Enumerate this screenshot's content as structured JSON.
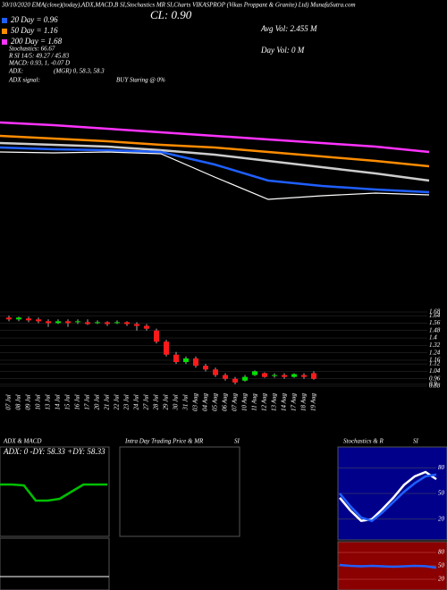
{
  "header": {
    "top_line": "30/10/2020 EMA(close)(today),ADX,MACD,B SI,Stochastics MR SI,Charts VIKASPROP (Vikas Proppant & Granite) Ltd) MunafaSutra.com",
    "close": "CL: 0.90",
    "avg_vol": "Avg Vol: 2.455 M",
    "day_vol": "Day Vol: 0  M",
    "ema_legend": [
      {
        "label": "20 Day = 0.96",
        "color": "#1f5fff"
      },
      {
        "label": "50 Day = 1.16",
        "color": "#ff8c00"
      },
      {
        "label": "200 Day = 1.68",
        "color": "#ff33ff"
      }
    ],
    "stats": [
      "Stochastics: 66.67",
      "R SI 14/5: 49.27 / 45.83",
      "MACD: 0.93, 1, -0.07 D"
    ],
    "adx": [
      "ADX:",
      "(MGR) 0, 58.3, 58.3"
    ],
    "adx_signal": [
      "ADX  signal:",
      "BUY Staring @ 0%"
    ]
  },
  "chart_data": [
    {
      "type": "line",
      "ylim": [
        0.5,
        2.5
      ],
      "series": [
        {
          "name": "200 Day",
          "color": "#ff33ff",
          "values": [
            2.13,
            2.1,
            2.06,
            2.02,
            1.98,
            1.94,
            1.9,
            1.86,
            1.8
          ]
        },
        {
          "name": "50 Day",
          "color": "#ff8c00",
          "values": [
            1.98,
            1.95,
            1.92,
            1.88,
            1.85,
            1.8,
            1.75,
            1.7,
            1.64
          ]
        },
        {
          "name": "100 Day",
          "color": "#cccccc",
          "values": [
            1.9,
            1.88,
            1.86,
            1.82,
            1.77,
            1.7,
            1.63,
            1.56,
            1.48
          ]
        },
        {
          "name": "20 Day",
          "color": "#1f5fff",
          "values": [
            1.85,
            1.83,
            1.82,
            1.8,
            1.66,
            1.48,
            1.42,
            1.38,
            1.35
          ]
        },
        {
          "name": "Price",
          "color": "#ffffff",
          "values": [
            1.8,
            1.79,
            1.8,
            1.78,
            1.52,
            1.27,
            1.31,
            1.34,
            1.32
          ]
        }
      ]
    },
    {
      "type": "candlestick",
      "ylim": [
        0.88,
        1.68
      ],
      "yticks": [
        1.68,
        1.64,
        1.56,
        1.48,
        1.4,
        1.32,
        1.24,
        1.16,
        1.12,
        1.04,
        0.96,
        0.9,
        0.88
      ],
      "up_color": "#00e000",
      "down_color": "#ff1a1a",
      "categories": [
        "07 Jul",
        "08 Jul",
        "09 Jul",
        "10 Jul",
        "13 Jul",
        "14 Jul",
        "15 Jul",
        "16 Jul",
        "17 Jul",
        "20 Jul",
        "21 Jul",
        "22 Jul",
        "23 Jul",
        "24 Jul",
        "27 Jul",
        "28 Jul",
        "29 Jul",
        "30 Jul",
        "31 Jul",
        "03 Aug",
        "04 Aug",
        "05 Aug",
        "06 Aug",
        "07 Aug",
        "10 Aug",
        "11 Aug",
        "12 Aug",
        "13 Aug",
        "14 Aug",
        "17 Aug",
        "18 Aug",
        "19 Aug"
      ],
      "open": [
        1.62,
        1.6,
        1.61,
        1.6,
        1.58,
        1.56,
        1.58,
        1.57,
        1.57,
        1.56,
        1.57,
        1.56,
        1.57,
        1.55,
        1.53,
        1.48,
        1.36,
        1.22,
        1.14,
        1.18,
        1.1,
        1.06,
        1.0,
        0.96,
        0.94,
        1.0,
        1.02,
        0.99,
        1.0,
        0.98,
        1.0,
        1.02
      ],
      "close": [
        1.6,
        1.62,
        1.59,
        1.58,
        1.56,
        1.58,
        1.56,
        1.58,
        1.55,
        1.57,
        1.55,
        1.57,
        1.55,
        1.53,
        1.5,
        1.36,
        1.22,
        1.14,
        1.18,
        1.1,
        1.06,
        1.0,
        0.96,
        0.92,
        0.98,
        1.04,
        0.98,
        1.0,
        0.98,
        1.01,
        0.98,
        0.96
      ],
      "high": [
        1.64,
        1.63,
        1.63,
        1.62,
        1.6,
        1.6,
        1.6,
        1.6,
        1.6,
        1.59,
        1.58,
        1.59,
        1.58,
        1.57,
        1.55,
        1.5,
        1.38,
        1.25,
        1.2,
        1.2,
        1.12,
        1.08,
        1.02,
        0.98,
        1.0,
        1.05,
        1.03,
        1.02,
        1.02,
        1.02,
        1.02,
        1.04
      ],
      "low": [
        1.58,
        1.58,
        1.57,
        1.56,
        1.52,
        1.55,
        1.52,
        1.55,
        1.54,
        1.55,
        1.53,
        1.55,
        1.53,
        1.48,
        1.48,
        1.34,
        1.2,
        1.12,
        1.12,
        1.08,
        1.04,
        0.98,
        0.94,
        0.9,
        0.93,
        0.99,
        0.97,
        0.97,
        0.96,
        0.97,
        0.96,
        0.95
      ]
    },
    {
      "type": "adx",
      "title": "ADX  & MACD",
      "readout": "ADX: 0  -DY: 58.33  +DY: 58.33",
      "ylim": [
        0,
        100
      ],
      "series": [
        {
          "name": "ADX",
          "color": "#00c000",
          "values": [
            58,
            58,
            57,
            40,
            40,
            42,
            50,
            58,
            58,
            58
          ]
        }
      ]
    },
    {
      "type": "blank",
      "title": "Intra Day Trading Price  & MR",
      "title2": "SI"
    },
    {
      "type": "stochastics",
      "title": "Stochastics & R",
      "title2": "SI",
      "ylim": [
        0,
        100
      ],
      "yticks": [
        80,
        50,
        20
      ],
      "series": [
        {
          "name": "%K",
          "color": "#ffffff",
          "values": [
            45,
            30,
            18,
            20,
            32,
            45,
            60,
            70,
            75,
            66.67
          ]
        },
        {
          "name": "%D",
          "color": "#1f5fff",
          "values": [
            50,
            35,
            22,
            18,
            28,
            40,
            52,
            62,
            70,
            72
          ]
        }
      ]
    },
    {
      "type": "rsi",
      "ylim": [
        0,
        100
      ],
      "yticks": [
        80,
        50,
        20
      ],
      "series": [
        {
          "name": "RSI",
          "color": "#1f5fff",
          "values": [
            52,
            50,
            49,
            50,
            49,
            48,
            49,
            50,
            49.27,
            45.83
          ]
        }
      ]
    }
  ]
}
